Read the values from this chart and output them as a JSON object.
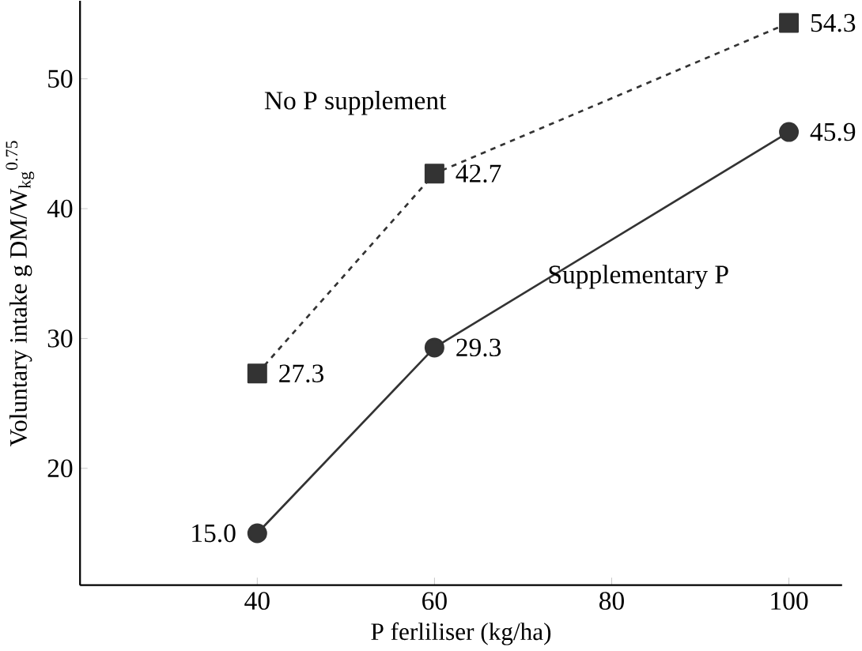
{
  "chart_data": {
    "type": "line",
    "xlabel": "P ferliliser (kg/ha)",
    "ylabel": "Voluntary intake g DM/W$_{kg}$$^{0.75}$",
    "x": [
      40,
      60,
      100
    ],
    "xlim": [
      20,
      106
    ],
    "xticks": [
      40,
      60,
      80,
      100
    ],
    "ylim": [
      11,
      56
    ],
    "yticks": [
      20,
      30,
      40,
      50
    ],
    "grid": false,
    "legend": false,
    "series": [
      {
        "name": "No P supplement",
        "color": "#333333",
        "values": [
          27.3,
          42.7,
          54.3
        ],
        "value_labels": [
          "27.3",
          "42.7",
          "54.3"
        ],
        "marker": "square",
        "line_style": "dashed"
      },
      {
        "name": "Supplementary P",
        "color": "#333333",
        "values": [
          15.0,
          29.3,
          45.9
        ],
        "value_labels": [
          "15.0",
          "29.3",
          "45.9"
        ],
        "marker": "circle",
        "line_style": "solid"
      }
    ]
  }
}
